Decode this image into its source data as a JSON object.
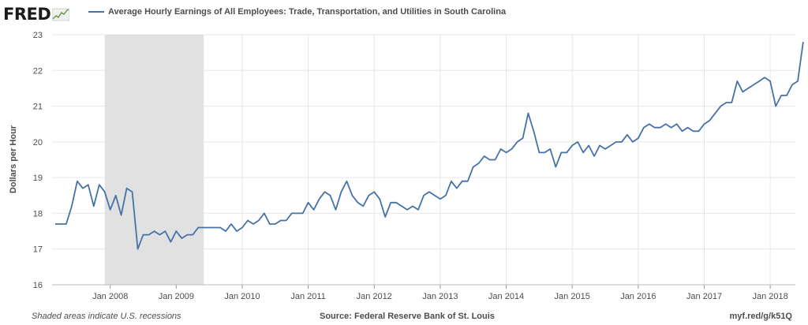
{
  "header": {
    "logo_text": "FRED",
    "logo_icon": "fred-sparkline-icon",
    "series_title": "Average Hourly Earnings of All Employees: Trade, Transportation, and Utilities in South Carolina"
  },
  "footer": {
    "note": "Shaded areas indicate U.S. recessions",
    "source": "Source: Federal Reserve Bank of St. Louis",
    "url": "myf.red/g/k51Q"
  },
  "colors": {
    "line": "#4572a7",
    "recession": "#e1e1e1",
    "grid": "#e6e6e6"
  },
  "chart_data": {
    "type": "line",
    "title": "",
    "xlabel": "",
    "ylabel": "Dollars per Hour",
    "ylim": [
      16,
      23
    ],
    "xlim": [
      "2007-03",
      "2018-05"
    ],
    "grid": true,
    "legend": "top-left",
    "yticks": [
      "16",
      "17",
      "18",
      "19",
      "20",
      "21",
      "22",
      "23"
    ],
    "xticks": [
      {
        "date": "2008-01",
        "label": "Jan 2008"
      },
      {
        "date": "2009-01",
        "label": "Jan 2009"
      },
      {
        "date": "2010-01",
        "label": "Jan 2010"
      },
      {
        "date": "2011-01",
        "label": "Jan 2011"
      },
      {
        "date": "2012-01",
        "label": "Jan 2012"
      },
      {
        "date": "2013-01",
        "label": "Jan 2013"
      },
      {
        "date": "2014-01",
        "label": "Jan 2014"
      },
      {
        "date": "2015-01",
        "label": "Jan 2015"
      },
      {
        "date": "2016-01",
        "label": "Jan 2016"
      },
      {
        "date": "2017-01",
        "label": "Jan 2017"
      },
      {
        "date": "2018-01",
        "label": "Jan 2018"
      }
    ],
    "recessions": [
      {
        "start": "2007-12",
        "end": "2009-06"
      }
    ],
    "series": [
      {
        "name": "Average Hourly Earnings of All Employees: Trade, Transportation, and Utilities in South Carolina",
        "start": "2007-03",
        "frequency": "monthly",
        "values": [
          17.7,
          17.7,
          17.7,
          18.2,
          18.9,
          18.7,
          18.8,
          18.2,
          18.8,
          18.6,
          18.1,
          18.5,
          17.95,
          18.7,
          18.6,
          17.0,
          17.4,
          17.4,
          17.5,
          17.4,
          17.5,
          17.2,
          17.5,
          17.3,
          17.4,
          17.4,
          17.6,
          17.6,
          17.6,
          17.6,
          17.6,
          17.5,
          17.7,
          17.5,
          17.6,
          17.8,
          17.7,
          17.8,
          18.0,
          17.7,
          17.7,
          17.8,
          17.8,
          18.0,
          18.0,
          18.0,
          18.3,
          18.1,
          18.4,
          18.6,
          18.5,
          18.1,
          18.6,
          18.9,
          18.5,
          18.3,
          18.2,
          18.5,
          18.6,
          18.4,
          17.9,
          18.3,
          18.3,
          18.2,
          18.1,
          18.2,
          18.1,
          18.5,
          18.6,
          18.5,
          18.4,
          18.5,
          18.9,
          18.7,
          18.9,
          18.9,
          19.3,
          19.4,
          19.6,
          19.5,
          19.5,
          19.8,
          19.7,
          19.8,
          20.0,
          20.1,
          20.8,
          20.3,
          19.7,
          19.7,
          19.8,
          19.3,
          19.7,
          19.7,
          19.9,
          20.0,
          19.7,
          19.9,
          19.6,
          19.9,
          19.8,
          19.9,
          20.0,
          20.0,
          20.2,
          20.0,
          20.1,
          20.4,
          20.5,
          20.4,
          20.4,
          20.5,
          20.4,
          20.5,
          20.3,
          20.4,
          20.3,
          20.3,
          20.5,
          20.6,
          20.8,
          21.0,
          21.1,
          21.1,
          21.7,
          21.4,
          21.5,
          21.6,
          21.7,
          21.8,
          21.7,
          21.0,
          21.3,
          21.3,
          21.6,
          21.7,
          22.8
        ]
      }
    ]
  }
}
